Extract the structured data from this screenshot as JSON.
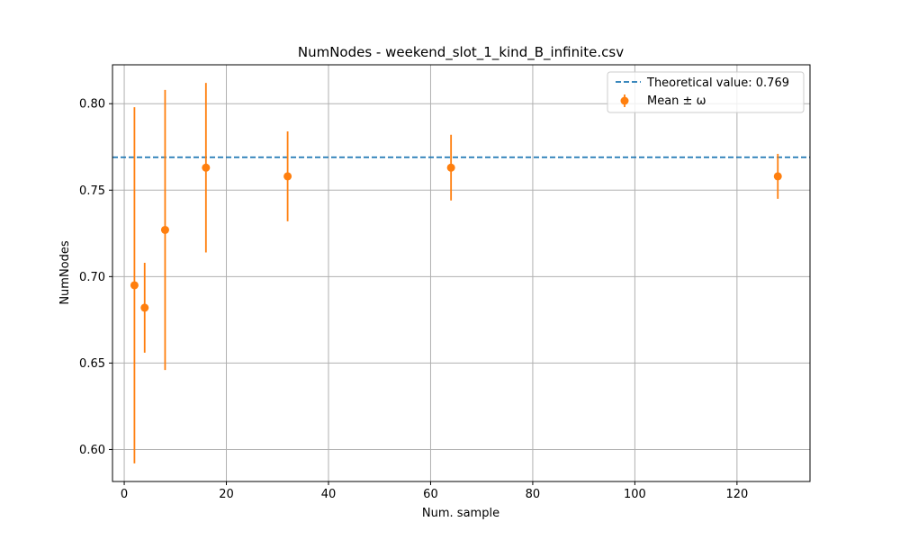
{
  "chart_data": {
    "type": "scatter",
    "title": "NumNodes - weekend_slot_1_kind_B_infinite.csv",
    "xlabel": "Num. sample",
    "ylabel": "NumNodes",
    "xlim": [
      -2.3,
      134.3
    ],
    "ylim": [
      0.5815,
      0.8225
    ],
    "xticks": [
      0,
      20,
      40,
      60,
      80,
      100,
      120
    ],
    "xtick_labels": [
      "0",
      "20",
      "40",
      "60",
      "80",
      "100",
      "120"
    ],
    "yticks": [
      0.6,
      0.65,
      0.7,
      0.75,
      0.8
    ],
    "ytick_labels": [
      "0.60",
      "0.65",
      "0.70",
      "0.75",
      "0.80"
    ],
    "grid": true,
    "legend_position": "top-right",
    "reference_line": {
      "name": "Theoretical value: 0.769",
      "y": 0.769,
      "style": "dashed",
      "color": "#1f77b4"
    },
    "series": [
      {
        "name": "Mean ± ω",
        "color": "#ff7f0e",
        "x": [
          2,
          4,
          8,
          16,
          32,
          64,
          128
        ],
        "y": [
          0.695,
          0.682,
          0.727,
          0.763,
          0.758,
          0.763,
          0.758
        ],
        "err_low": [
          0.592,
          0.656,
          0.646,
          0.714,
          0.732,
          0.744,
          0.745
        ],
        "err_high": [
          0.798,
          0.708,
          0.808,
          0.812,
          0.784,
          0.782,
          0.771
        ]
      }
    ]
  }
}
